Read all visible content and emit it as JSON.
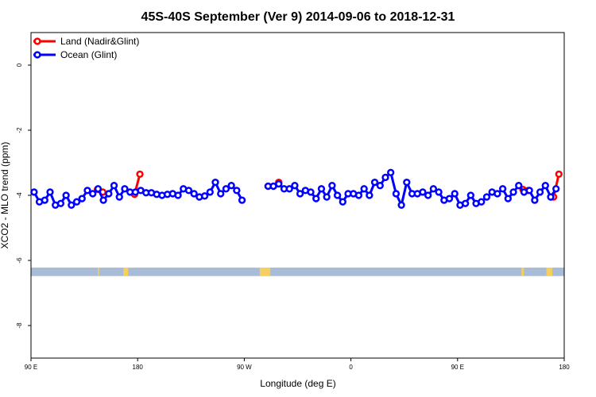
{
  "chart_data": {
    "type": "line",
    "title": "45S-40S September (Ver 9)   2014-09-06 to 2018-12-31",
    "xlabel": "Longitude (deg E)",
    "ylabel": "XCO2 - MLO trend (ppm)",
    "xlim": [
      90,
      540
    ],
    "ylim": [
      -9,
      1
    ],
    "x_ticks": [
      {
        "value": 90,
        "label": "90 E"
      },
      {
        "value": 180,
        "label": "180"
      },
      {
        "value": 270,
        "label": "90 W"
      },
      {
        "value": 360,
        "label": "0"
      },
      {
        "value": 450,
        "label": "90 E"
      },
      {
        "value": 540,
        "label": "180"
      }
    ],
    "y_ticks": [
      {
        "value": 0,
        "label": "0"
      },
      {
        "value": -2,
        "label": "-2"
      },
      {
        "value": -4,
        "label": "-4"
      },
      {
        "value": -6,
        "label": "-6"
      },
      {
        "value": -8,
        "label": "-8"
      }
    ],
    "legend_position": "top-left",
    "grid": false,
    "series": [
      {
        "name": "Land (Nadir&Glint)",
        "color": "#ff0000",
        "points": [
          [
            146.1,
            -3.82
          ],
          [
            150.6,
            -3.9
          ],
          [
            177.4,
            -3.97
          ],
          [
            181.9,
            -3.35
          ],
          [
            290.1,
            -3.72
          ],
          [
            294.6,
            -3.72
          ],
          [
            299.1,
            -3.6
          ],
          [
            505.2,
            -3.82
          ],
          [
            509.7,
            -3.85
          ],
          [
            531.0,
            -4.05
          ],
          [
            535.5,
            -3.35
          ]
        ]
      },
      {
        "name": "Ocean (Glint)",
        "color": "#0000ff",
        "points": [
          [
            92.6,
            -3.9
          ],
          [
            97.1,
            -4.2
          ],
          [
            101.6,
            -4.15
          ],
          [
            106.1,
            -3.9
          ],
          [
            110.6,
            -4.3
          ],
          [
            115.1,
            -4.25
          ],
          [
            119.6,
            -4.0
          ],
          [
            124.1,
            -4.3
          ],
          [
            128.6,
            -4.2
          ],
          [
            133.1,
            -4.1
          ],
          [
            137.6,
            -3.85
          ],
          [
            142.1,
            -3.95
          ],
          [
            146.6,
            -3.8
          ],
          [
            151.1,
            -4.15
          ],
          [
            155.6,
            -3.95
          ],
          [
            160.1,
            -3.7
          ],
          [
            164.6,
            -4.05
          ],
          [
            169.1,
            -3.8
          ],
          [
            173.6,
            -3.9
          ],
          [
            178.1,
            -3.9
          ],
          [
            182.6,
            -3.85
          ],
          [
            187.1,
            -3.92
          ],
          [
            191.6,
            -3.92
          ],
          [
            196.1,
            -3.97
          ],
          [
            200.6,
            -4.0
          ],
          [
            205.1,
            -3.97
          ],
          [
            209.6,
            -3.95
          ],
          [
            214.1,
            -4.0
          ],
          [
            218.6,
            -3.8
          ],
          [
            223.1,
            -3.85
          ],
          [
            227.6,
            -3.95
          ],
          [
            232.1,
            -4.05
          ],
          [
            236.6,
            -4.02
          ],
          [
            241.1,
            -3.9
          ],
          [
            245.6,
            -3.6
          ],
          [
            250.1,
            -3.95
          ],
          [
            254.6,
            -3.8
          ],
          [
            259.1,
            -3.7
          ],
          [
            263.6,
            -3.85
          ],
          [
            268.1,
            -4.15
          ],
          [
            290.1,
            -3.72
          ],
          [
            294.6,
            -3.72
          ],
          [
            299.1,
            -3.65
          ],
          [
            303.6,
            -3.8
          ],
          [
            308.1,
            -3.8
          ],
          [
            312.6,
            -3.7
          ],
          [
            317.1,
            -3.95
          ],
          [
            321.6,
            -3.85
          ],
          [
            326.1,
            -3.9
          ],
          [
            330.6,
            -4.1
          ],
          [
            335.1,
            -3.8
          ],
          [
            339.6,
            -4.05
          ],
          [
            344.1,
            -3.7
          ],
          [
            348.6,
            -4.0
          ],
          [
            353.1,
            -4.2
          ],
          [
            357.6,
            -3.95
          ],
          [
            362.1,
            -3.95
          ],
          [
            366.6,
            -4.0
          ],
          [
            371.1,
            -3.8
          ],
          [
            375.6,
            -4.0
          ],
          [
            380.1,
            -3.6
          ],
          [
            384.6,
            -3.7
          ],
          [
            389.1,
            -3.45
          ],
          [
            393.6,
            -3.3
          ],
          [
            398.1,
            -3.95
          ],
          [
            402.6,
            -4.3
          ],
          [
            407.1,
            -3.6
          ],
          [
            411.6,
            -3.95
          ],
          [
            416.1,
            -3.95
          ],
          [
            420.6,
            -3.9
          ],
          [
            425.1,
            -4.0
          ],
          [
            429.6,
            -3.8
          ],
          [
            434.1,
            -3.9
          ],
          [
            438.6,
            -4.15
          ],
          [
            443.1,
            -4.1
          ],
          [
            447.6,
            -3.95
          ],
          [
            452.1,
            -4.3
          ],
          [
            456.6,
            -4.25
          ],
          [
            461.1,
            -4.0
          ],
          [
            465.6,
            -4.25
          ],
          [
            470.1,
            -4.2
          ],
          [
            474.6,
            -4.05
          ],
          [
            479.1,
            -3.9
          ],
          [
            483.6,
            -3.95
          ],
          [
            488.1,
            -3.8
          ],
          [
            492.6,
            -4.1
          ],
          [
            497.1,
            -3.9
          ],
          [
            501.6,
            -3.7
          ],
          [
            506.1,
            -3.9
          ],
          [
            510.6,
            -3.85
          ],
          [
            515.1,
            -4.15
          ],
          [
            519.6,
            -3.9
          ],
          [
            524.1,
            -3.7
          ],
          [
            528.6,
            -4.05
          ],
          [
            533.1,
            -3.8
          ]
        ]
      }
    ],
    "ocean_strip": {
      "color": "#a8bcd8",
      "y_top": -6.22,
      "y_bottom": -6.48
    },
    "land_strip": {
      "color": "#f5d060",
      "segments": [
        [
          146.5,
          147.5
        ],
        [
          168,
          172
        ],
        [
          283,
          292
        ],
        [
          504,
          506
        ],
        [
          525,
          530
        ]
      ]
    }
  }
}
